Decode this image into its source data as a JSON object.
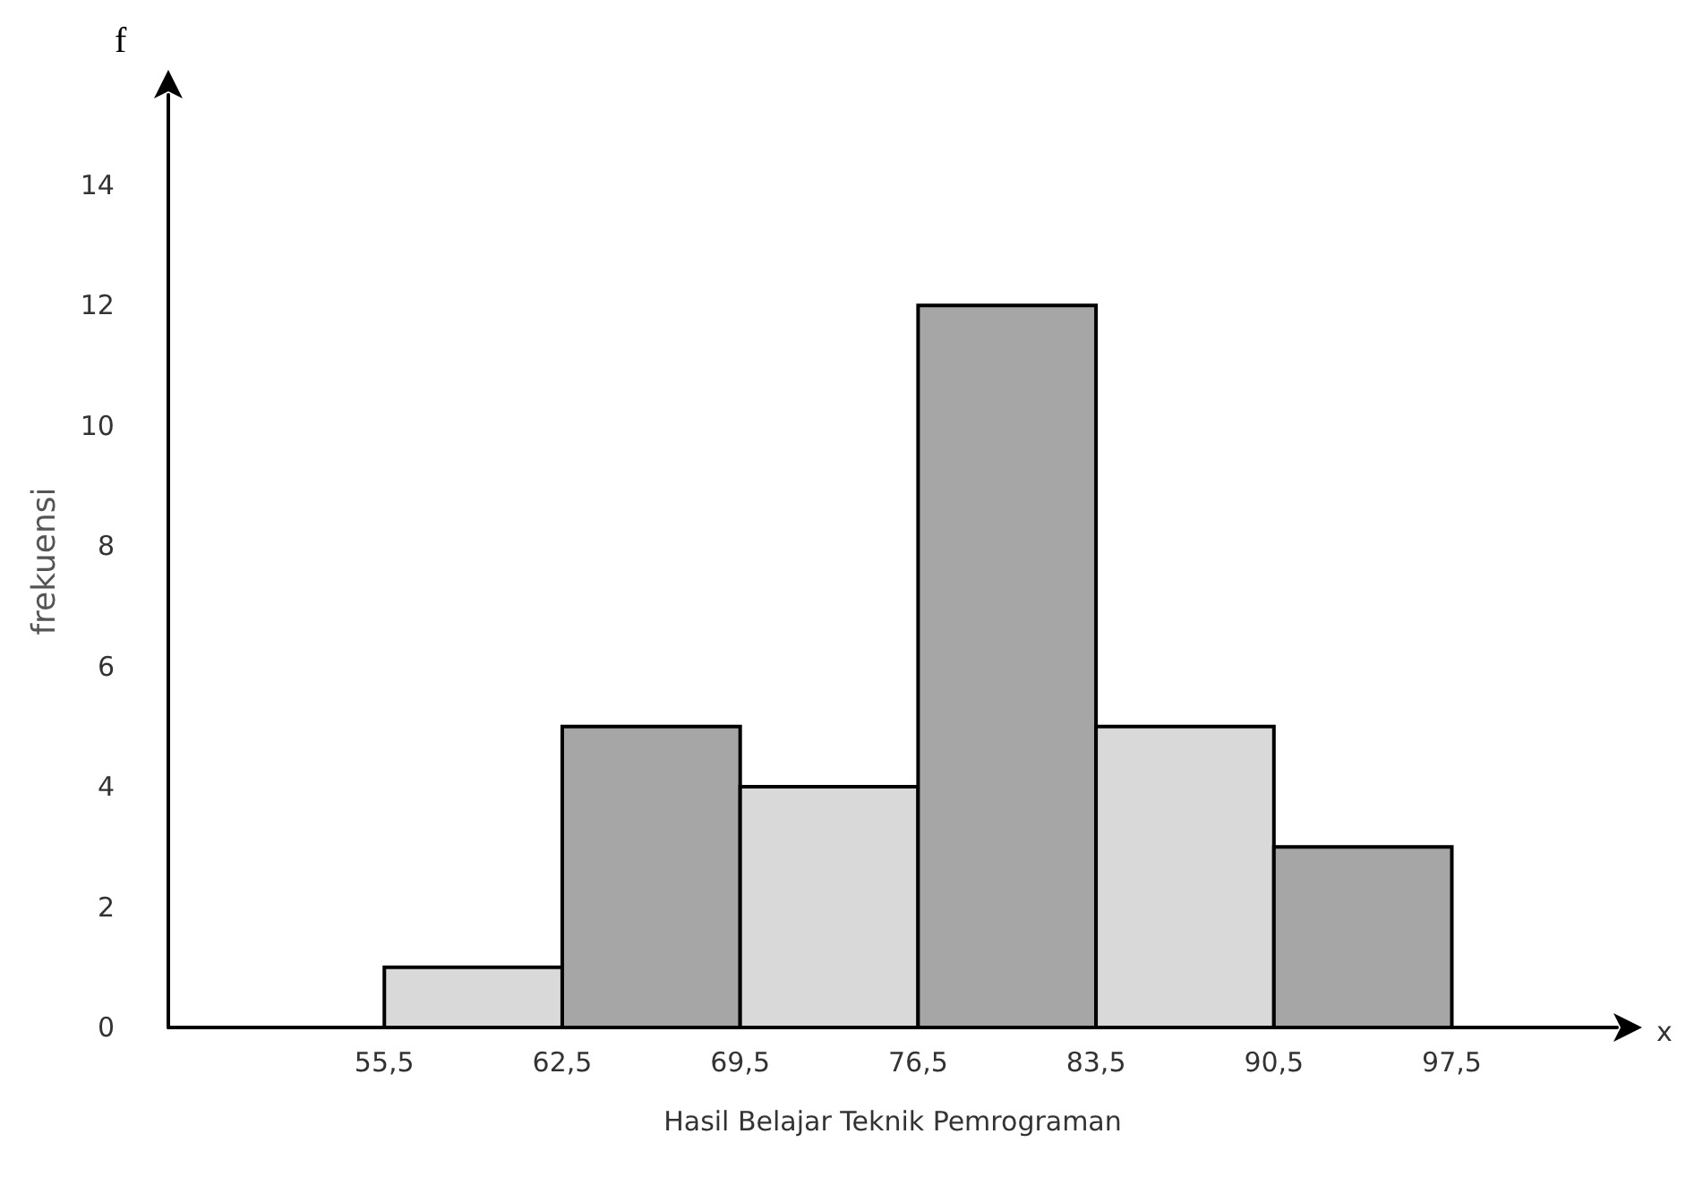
{
  "chart_data": {
    "type": "histogram",
    "xlabel": "Hasil Belajar Teknik Pemrograman",
    "ylabel": "frekuensi",
    "annotations": [
      "f",
      "x"
    ],
    "bins": [
      55.5,
      62.5,
      69.5,
      76.5,
      83.5,
      90.5,
      97.5
    ],
    "values": [
      1,
      5,
      4,
      12,
      5,
      3
    ],
    "colors": [
      "#d9d9d9",
      "#a6a6a6",
      "#d9d9d9",
      "#a6a6a6",
      "#d9d9d9",
      "#a6a6a6"
    ],
    "xlim": [
      47,
      104
    ],
    "xticks": [
      {
        "value": 55.5,
        "label": "55,5"
      },
      {
        "value": 62.5,
        "label": "62,5"
      },
      {
        "value": 69.5,
        "label": "69,5"
      },
      {
        "value": 76.5,
        "label": "76,5"
      },
      {
        "value": 83.5,
        "label": "83,5"
      },
      {
        "value": 90.5,
        "label": "90,5"
      },
      {
        "value": 97.5,
        "label": "97,5"
      }
    ],
    "ylim": [
      0,
      15.5
    ],
    "yticks": [
      0,
      2,
      4,
      6,
      8,
      10,
      12,
      14
    ],
    "grid": false
  }
}
